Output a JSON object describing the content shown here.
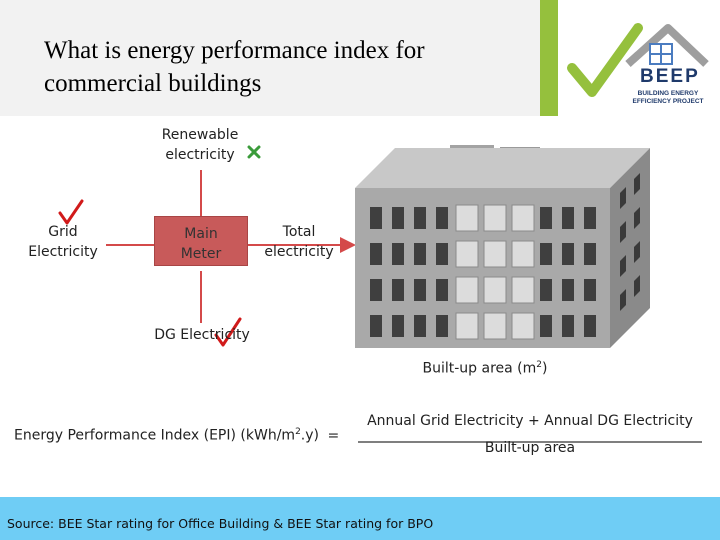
{
  "header": {
    "title": "What is energy performance index for commercial buildings"
  },
  "logo": {
    "name": "BEEP",
    "subtitle": "BUILDING ENERGY EFFICIENCY PROJECT"
  },
  "diagram": {
    "renewable": "Renewable electricity",
    "grid": "Grid Electricity",
    "meter": "Main Meter",
    "total": "Total electricity",
    "dg": "DG Electricity",
    "area_prefix": "Built-up area (m",
    "area_sup": "2",
    "area_suffix": ")"
  },
  "formula": {
    "lhs_prefix": "Energy Performance Index (EPI) (kWh/m",
    "lhs_sup": "2",
    "lhs_suffix": ".y)",
    "equals": "=",
    "numerator": "Annual Grid Electricity + Annual DG Electricity",
    "denominator": "Built-up area"
  },
  "footer": {
    "source": "Source: BEE Star rating for Office Building & BEE Star rating for BPO"
  },
  "colors": {
    "accent_green": "#95c03d",
    "meter_red": "#c85a5a",
    "footer_blue": "#6fcdf5",
    "check_red": "#d11a1a",
    "cross_green": "#3a9b3a"
  }
}
